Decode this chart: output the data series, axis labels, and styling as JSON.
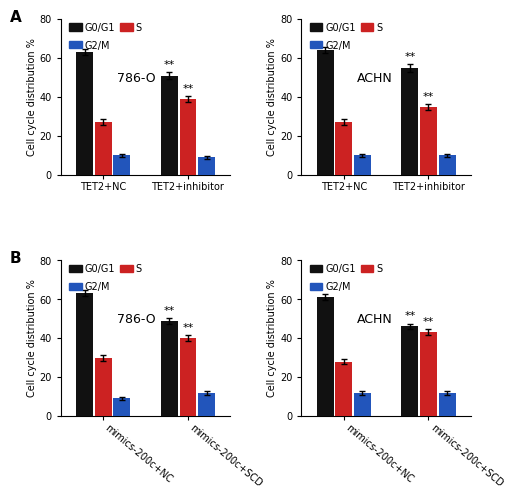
{
  "panels": [
    {
      "label": "A",
      "cell_line": "786-O",
      "groups": [
        "TET2+NC",
        "TET2+inhibitor"
      ],
      "values": {
        "G0/G1": [
          63,
          51
        ],
        "S": [
          27,
          39
        ],
        "G2/M": [
          10,
          9
        ]
      },
      "errors": {
        "G0/G1": [
          1.5,
          2.0
        ],
        "S": [
          1.5,
          1.5
        ],
        "G2/M": [
          0.8,
          0.8
        ]
      },
      "sig": {
        "G0/G1": [
          false,
          true
        ],
        "S": [
          false,
          true
        ],
        "G2/M": [
          false,
          false
        ]
      },
      "xticklabels": [
        "TET2+NC",
        "TET2+inhibitor"
      ],
      "xticklabels_rotation": 0
    },
    {
      "label": "A",
      "cell_line": "ACHN",
      "groups": [
        "TET2+NC",
        "TET2+inhibitor"
      ],
      "values": {
        "G0/G1": [
          64,
          55
        ],
        "S": [
          27,
          35
        ],
        "G2/M": [
          10,
          10
        ]
      },
      "errors": {
        "G0/G1": [
          1.5,
          2.0
        ],
        "S": [
          1.5,
          1.5
        ],
        "G2/M": [
          0.8,
          0.8
        ]
      },
      "sig": {
        "G0/G1": [
          false,
          true
        ],
        "S": [
          false,
          true
        ],
        "G2/M": [
          false,
          false
        ]
      },
      "xticklabels": [
        "TET2+NC",
        "TET2+inhibitor"
      ],
      "xticklabels_rotation": 0
    },
    {
      "label": "B",
      "cell_line": "786-O",
      "groups": [
        "mimics-200c+NC",
        "mimics-200c+SCD"
      ],
      "values": {
        "G0/G1": [
          63,
          49
        ],
        "S": [
          30,
          40
        ],
        "G2/M": [
          9,
          12
        ]
      },
      "errors": {
        "G0/G1": [
          1.5,
          1.5
        ],
        "S": [
          1.5,
          1.5
        ],
        "G2/M": [
          1.0,
          1.0
        ]
      },
      "sig": {
        "G0/G1": [
          false,
          true
        ],
        "S": [
          false,
          true
        ],
        "G2/M": [
          false,
          false
        ]
      },
      "xticklabels": [
        "mimics-200c+NC",
        "mimics-200c+SCD"
      ],
      "xticklabels_rotation": -40
    },
    {
      "label": "B",
      "cell_line": "ACHN",
      "groups": [
        "mimics-200c+NC",
        "mimics-200c+SCD"
      ],
      "values": {
        "G0/G1": [
          61,
          46
        ],
        "S": [
          28,
          43
        ],
        "G2/M": [
          12,
          12
        ]
      },
      "errors": {
        "G0/G1": [
          1.5,
          1.5
        ],
        "S": [
          1.5,
          1.5
        ],
        "G2/M": [
          1.0,
          1.0
        ]
      },
      "sig": {
        "G0/G1": [
          false,
          true
        ],
        "S": [
          false,
          true
        ],
        "G2/M": [
          false,
          false
        ]
      },
      "xticklabels": [
        "mimics-200c+NC",
        "mimics-200c+SCD"
      ],
      "xticklabels_rotation": -40
    }
  ],
  "colors": {
    "G0/G1": "#111111",
    "S": "#cc2222",
    "G2/M": "#2255bb"
  },
  "ylim": [
    0,
    80
  ],
  "yticks": [
    0,
    20,
    40,
    60,
    80
  ],
  "ylabel": "Cell cycle distribution %",
  "bar_width": 0.22,
  "fontsize": 7,
  "sig_fontsize": 8,
  "cell_line_fontsize": 9,
  "panel_label_fontsize": 11
}
